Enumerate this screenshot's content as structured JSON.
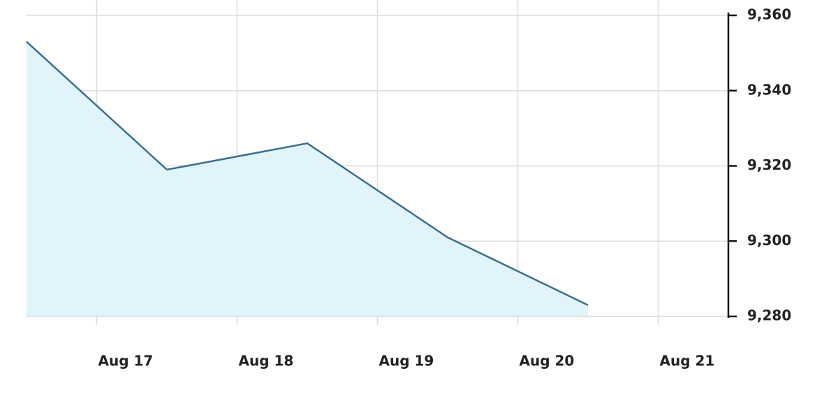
{
  "chart_data": {
    "type": "area",
    "x": [
      16.5,
      17.5,
      18.5,
      19.5,
      20.5
    ],
    "series": [
      {
        "color": "#3a6f8f",
        "values": [
          9353,
          9319,
          9326,
          9301,
          9283
        ]
      }
    ],
    "fill": "#e1f4fb",
    "xlim": [
      16.5,
      21.5
    ],
    "xticks": [
      {
        "value": 17,
        "label": "Aug 17"
      },
      {
        "value": 18,
        "label": "Aug 18"
      },
      {
        "value": 19,
        "label": "Aug 19"
      },
      {
        "value": 20,
        "label": "Aug 20"
      },
      {
        "value": 21,
        "label": "Aug 21"
      }
    ],
    "ylim": [
      9280,
      9360
    ],
    "yticks": [
      {
        "value": 9280,
        "label": "9,280"
      },
      {
        "value": 9300,
        "label": "9,300"
      },
      {
        "value": 9320,
        "label": "9,320"
      },
      {
        "value": 9340,
        "label": "9,340"
      },
      {
        "value": 9360,
        "label": "9,360"
      }
    ],
    "y_axis_side": "right",
    "grid": true
  }
}
